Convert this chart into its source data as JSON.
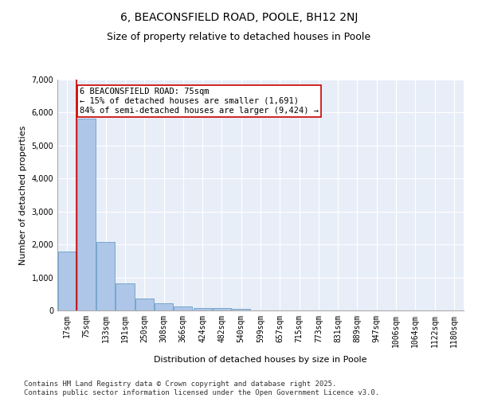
{
  "title": "6, BEACONSFIELD ROAD, POOLE, BH12 2NJ",
  "subtitle": "Size of property relative to detached houses in Poole",
  "xlabel": "Distribution of detached houses by size in Poole",
  "ylabel": "Number of detached properties",
  "categories": [
    "17sqm",
    "75sqm",
    "133sqm",
    "191sqm",
    "250sqm",
    "308sqm",
    "366sqm",
    "424sqm",
    "482sqm",
    "540sqm",
    "599sqm",
    "657sqm",
    "715sqm",
    "773sqm",
    "831sqm",
    "889sqm",
    "947sqm",
    "1006sqm",
    "1064sqm",
    "1122sqm",
    "1180sqm"
  ],
  "values": [
    1780,
    5820,
    2080,
    820,
    370,
    220,
    130,
    80,
    80,
    40,
    0,
    0,
    0,
    0,
    0,
    0,
    0,
    0,
    0,
    0,
    0
  ],
  "highlight_bar_index": 1,
  "bar_color": "#aec6e8",
  "bar_edge_color": "#6a9ec8",
  "vline_x": 0.5,
  "vline_color": "#cc0000",
  "annotation_text": "6 BEACONSFIELD ROAD: 75sqm\n← 15% of detached houses are smaller (1,691)\n84% of semi-detached houses are larger (9,424) →",
  "annotation_box_color": "#ffffff",
  "annotation_box_edge_color": "#cc0000",
  "ylim": [
    0,
    7000
  ],
  "yticks": [
    0,
    1000,
    2000,
    3000,
    4000,
    5000,
    6000,
    7000
  ],
  "background_color": "#e8eef8",
  "grid_color": "#ffffff",
  "footer_text": "Contains HM Land Registry data © Crown copyright and database right 2025.\nContains public sector information licensed under the Open Government Licence v3.0.",
  "title_fontsize": 10,
  "subtitle_fontsize": 9,
  "axis_label_fontsize": 8,
  "tick_fontsize": 7,
  "annotation_fontsize": 7.5,
  "footer_fontsize": 6.5
}
